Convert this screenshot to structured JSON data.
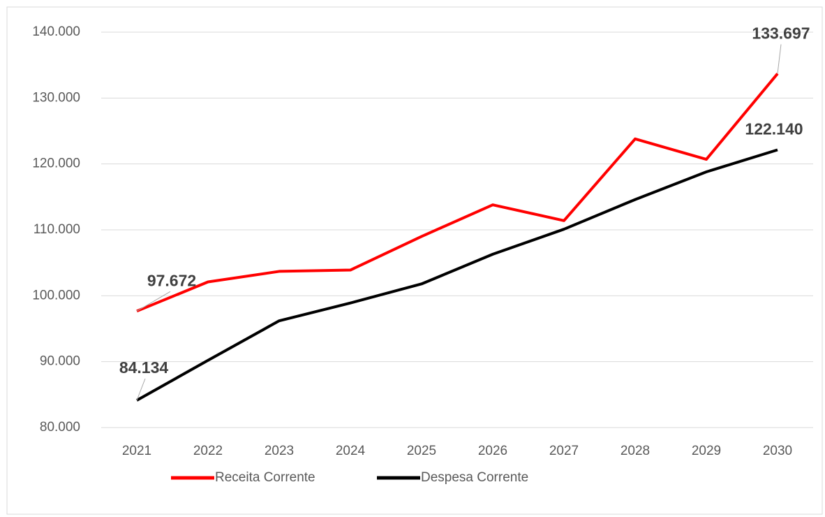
{
  "chart_data": {
    "type": "line",
    "categories": [
      "2021",
      "2022",
      "2023",
      "2024",
      "2025",
      "2026",
      "2027",
      "2028",
      "2029",
      "2030"
    ],
    "series": [
      {
        "name": "Receita Corrente",
        "color": "#ff0000",
        "values": [
          97672,
          102100,
          103700,
          103900,
          109000,
          113800,
          111400,
          123800,
          120700,
          133697
        ],
        "value_labels": [
          "97.672",
          null,
          null,
          null,
          null,
          null,
          null,
          null,
          null,
          "133.697"
        ]
      },
      {
        "name": "Despesa Corrente",
        "color": "#000000",
        "values": [
          84134,
          90200,
          96200,
          98900,
          101800,
          106300,
          110100,
          114600,
          118800,
          122140
        ],
        "value_labels": [
          "84.134",
          null,
          null,
          null,
          null,
          null,
          null,
          null,
          null,
          "122.140"
        ]
      }
    ],
    "ylim": [
      80000,
      140000
    ],
    "yticks": [
      {
        "value": 80000,
        "label": "80.000"
      },
      {
        "value": 90000,
        "label": "90.000"
      },
      {
        "value": 100000,
        "label": "100.000"
      },
      {
        "value": 110000,
        "label": "110.000"
      },
      {
        "value": 120000,
        "label": "120.000"
      },
      {
        "value": 130000,
        "label": "130.000"
      },
      {
        "value": 140000,
        "label": "140.000"
      }
    ],
    "grid": true
  }
}
